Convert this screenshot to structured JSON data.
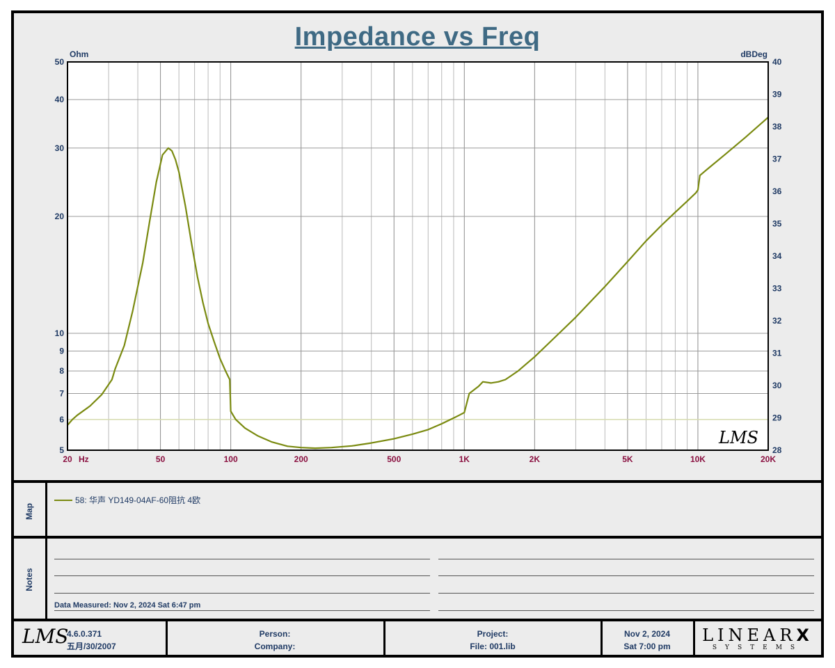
{
  "title": "Impedance vs Freq",
  "chart_data": {
    "type": "line",
    "xscale": "log",
    "yscale_left": "log",
    "xlim": [
      20,
      20000
    ],
    "ylim_left": [
      5,
      50
    ],
    "ylim_right": [
      28,
      40
    ],
    "left_unit": "Ohm",
    "right_unit": "dBDeg",
    "x_unit": "Hz",
    "x_ticks": [
      {
        "v": 20,
        "label": "20"
      },
      {
        "v": 50,
        "label": "50"
      },
      {
        "v": 100,
        "label": "100"
      },
      {
        "v": 200,
        "label": "200"
      },
      {
        "v": 500,
        "label": "500"
      },
      {
        "v": 1000,
        "label": "1K"
      },
      {
        "v": 2000,
        "label": "2K"
      },
      {
        "v": 5000,
        "label": "5K"
      },
      {
        "v": 10000,
        "label": "10K"
      },
      {
        "v": 20000,
        "label": "20K"
      }
    ],
    "y_left_ticks": [
      {
        "v": 5,
        "label": "5"
      },
      {
        "v": 6,
        "label": "6"
      },
      {
        "v": 7,
        "label": "7"
      },
      {
        "v": 8,
        "label": "8"
      },
      {
        "v": 9,
        "label": "9"
      },
      {
        "v": 10,
        "label": "10"
      },
      {
        "v": 20,
        "label": "20"
      },
      {
        "v": 30,
        "label": "30"
      },
      {
        "v": 40,
        "label": "40"
      },
      {
        "v": 50,
        "label": "50"
      }
    ],
    "y_right_ticks": [
      "28",
      "29",
      "30",
      "31",
      "32",
      "33",
      "34",
      "35",
      "36",
      "37",
      "38",
      "39",
      "40"
    ],
    "reference_line_ohm": 6,
    "grid": true,
    "series": [
      {
        "name": "58: 华声 YD149-04AF-60阻抗 4欧",
        "color": "#7a8a10",
        "x": [
          20,
          21,
          22,
          25,
          28,
          31,
          32,
          35,
          38,
          42,
          45,
          48,
          51,
          54,
          56,
          58,
          60,
          64,
          68,
          72,
          76,
          80,
          85,
          90,
          95,
          99,
          100,
          105,
          115,
          130,
          150,
          175,
          200,
          230,
          270,
          330,
          400,
          500,
          600,
          700,
          800,
          900,
          950,
          1000,
          1050,
          1100,
          1150,
          1200,
          1300,
          1400,
          1500,
          1700,
          2000,
          2500,
          3000,
          4000,
          5000,
          6000,
          7000,
          8000,
          9000,
          9800,
          10000,
          10200,
          11000,
          13000,
          16000,
          20000
        ],
        "y": [
          5.8,
          6.0,
          6.15,
          6.5,
          6.95,
          7.6,
          8.1,
          9.3,
          11.4,
          15.2,
          19.5,
          24.5,
          28.8,
          30.0,
          29.5,
          28.0,
          26.0,
          21.2,
          17.0,
          14.0,
          12.0,
          10.6,
          9.5,
          8.6,
          8.0,
          7.6,
          6.3,
          6.0,
          5.7,
          5.45,
          5.25,
          5.12,
          5.08,
          5.06,
          5.08,
          5.13,
          5.22,
          5.35,
          5.5,
          5.65,
          5.85,
          6.05,
          6.15,
          6.25,
          7.0,
          7.15,
          7.3,
          7.5,
          7.45,
          7.5,
          7.6,
          8.0,
          8.7,
          9.9,
          11.0,
          13.2,
          15.3,
          17.3,
          19.0,
          20.5,
          21.9,
          23.0,
          23.4,
          25.5,
          26.5,
          28.8,
          32.0,
          36.0
        ]
      }
    ]
  },
  "map": {
    "label": "Map",
    "legend": "58: 华声 YD149-04AF-60阻抗 4欧"
  },
  "notes": {
    "label": "Notes",
    "measured": "Data Measured: Nov  2, 2024  Sat  6:47 pm"
  },
  "footer": {
    "lms_logo": "LMS",
    "version": "4.6.0.371",
    "version_date": "五月/30/2007",
    "person": "Person:",
    "company": "Company:",
    "project": "Project:",
    "file": "File: 001.lib",
    "date": "Nov  2, 2024",
    "time": "Sat  7:00 pm",
    "brand": "LINEAR",
    "brand_x": "X",
    "brand_sub": "SYSTEMS"
  },
  "plot_logo": "LMS",
  "colors": {
    "title": "#3f6a84",
    "curve": "#7a8a10",
    "axis_left": "#1f3a64",
    "axis_bottom": "#8a1040",
    "reference": "#d8dcb0"
  }
}
